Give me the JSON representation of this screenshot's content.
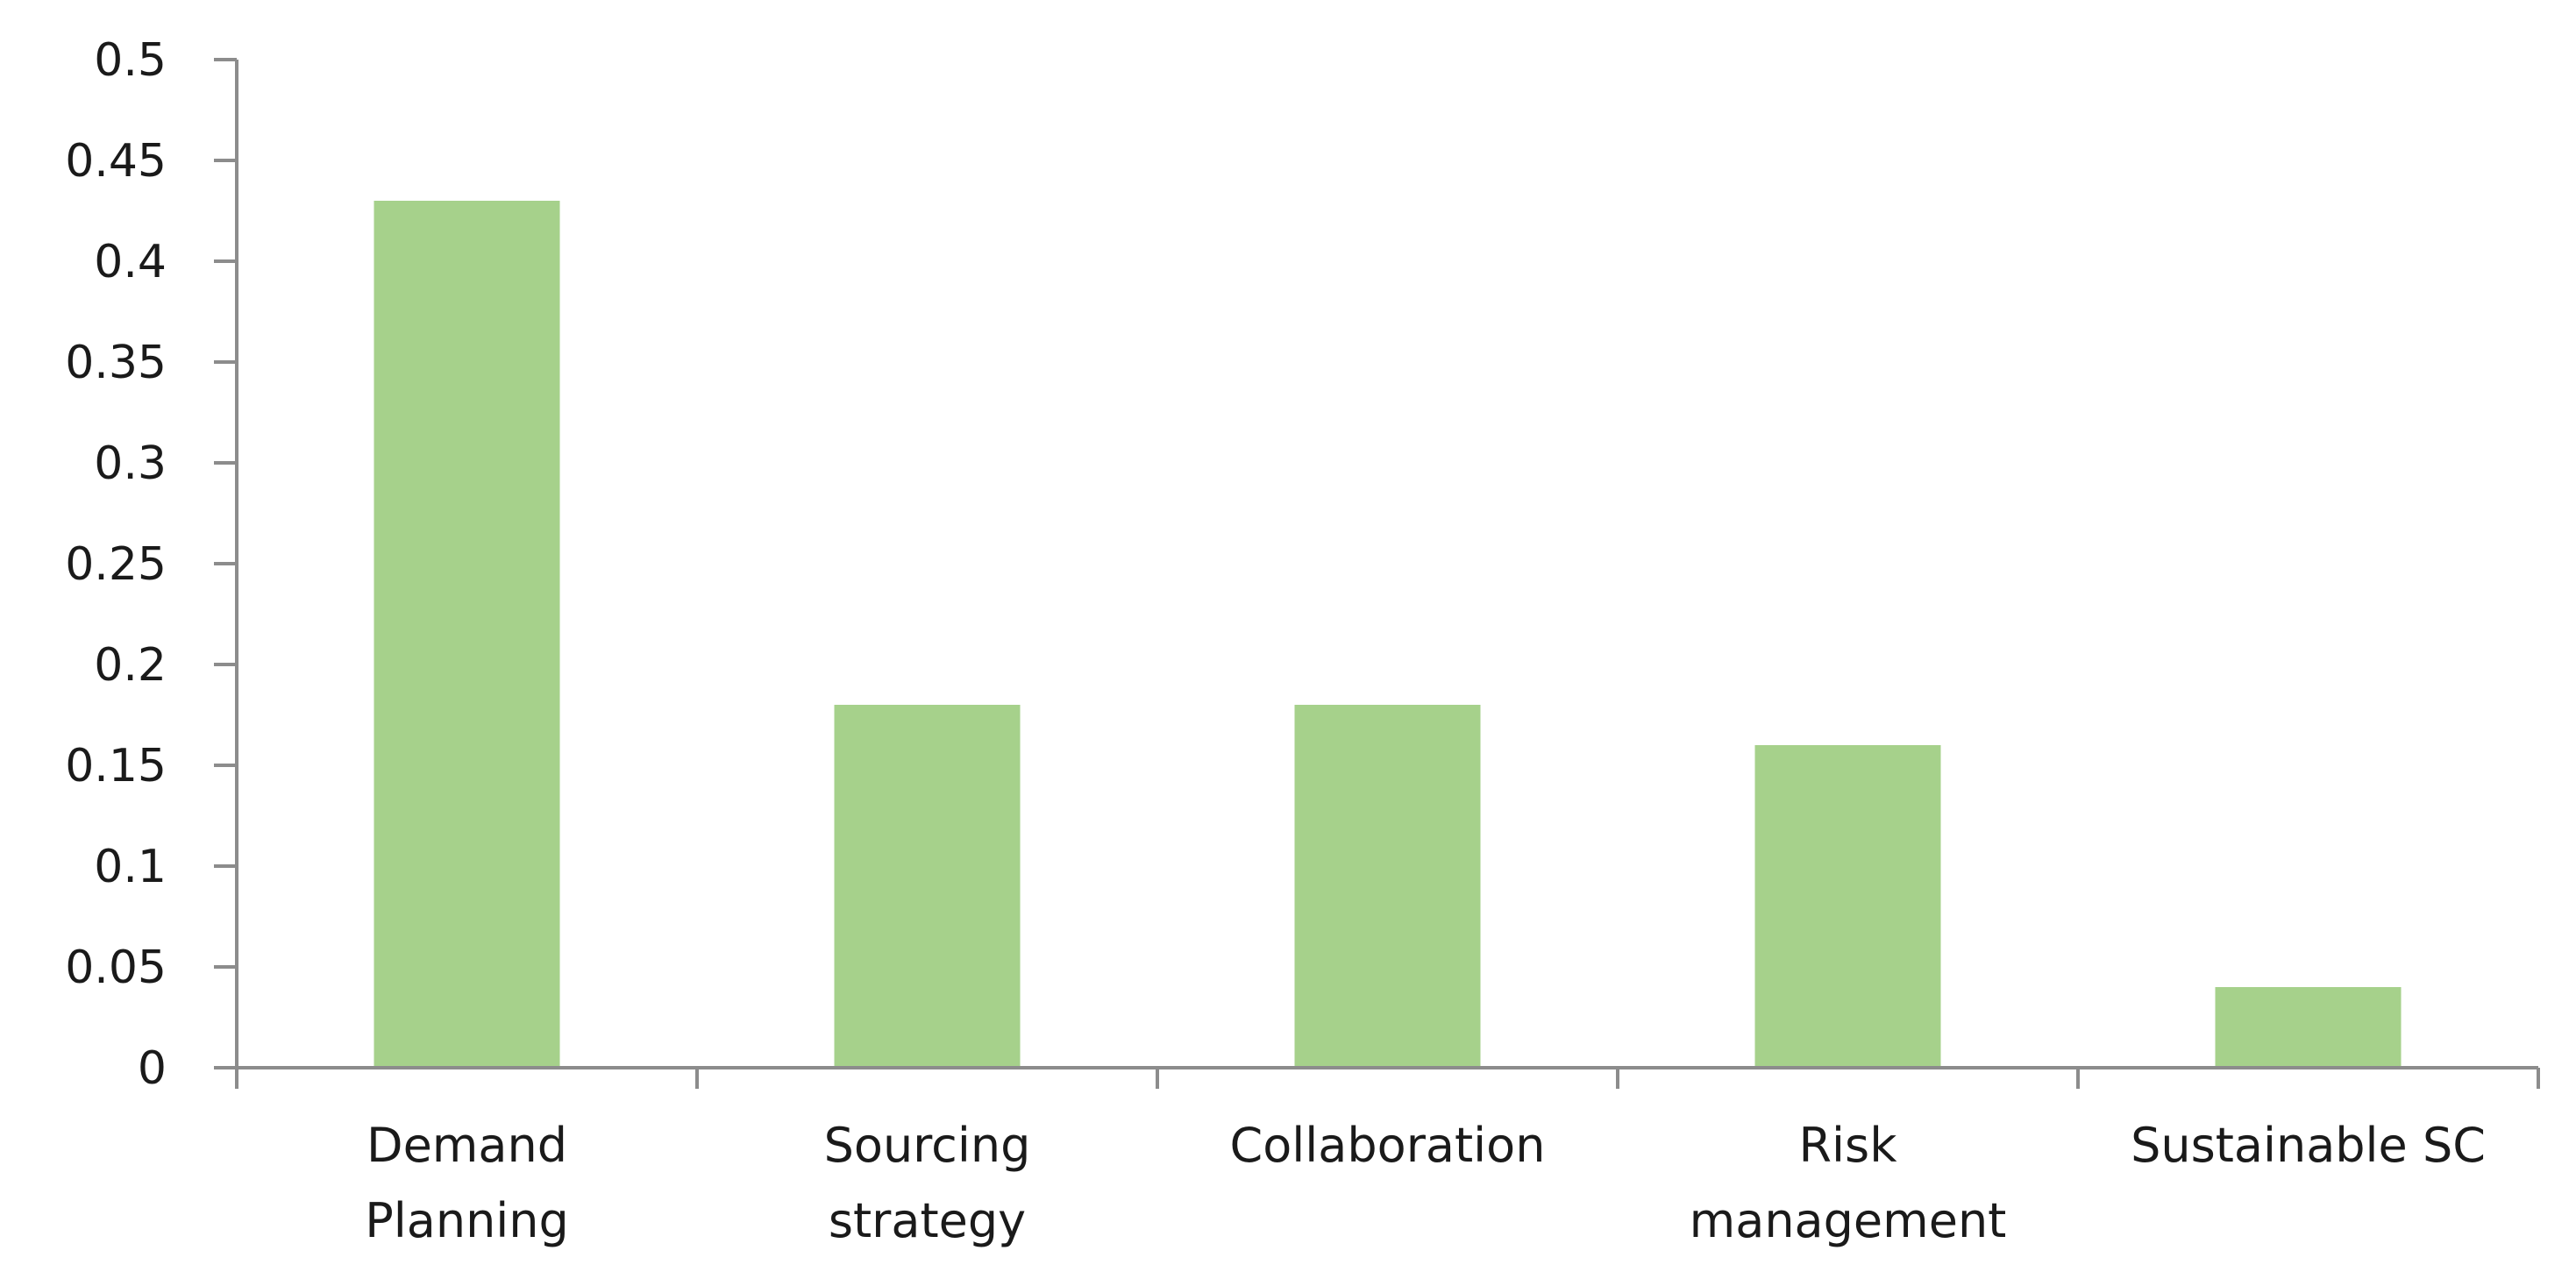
{
  "chart_data": {
    "type": "bar",
    "categories": [
      "Demand Planning",
      "Sourcing strategy",
      "Collaboration",
      "Risk management",
      "Sustainable SC"
    ],
    "category_label_lines": [
      [
        "Demand",
        "Planning"
      ],
      [
        "Sourcing",
        "strategy"
      ],
      [
        "Collaboration"
      ],
      [
        "Risk",
        "management"
      ],
      [
        "Sustainable SC"
      ]
    ],
    "series": [
      {
        "values": [
          0.43,
          0.18,
          0.18,
          0.16,
          0.04
        ]
      }
    ],
    "ylim": [
      0,
      0.5
    ],
    "yticks": [
      "0",
      "0.05",
      "0.1",
      "0.15",
      "0.2",
      "0.25",
      "0.3",
      "0.35",
      "0.4",
      "0.45",
      "0.5"
    ],
    "title": "",
    "xlabel": "",
    "ylabel": "",
    "legend": "none",
    "grid": false,
    "colors": {
      "bar": "#a6d18b",
      "axis": "#8c8c8c",
      "text": "#1a1a1a"
    }
  }
}
